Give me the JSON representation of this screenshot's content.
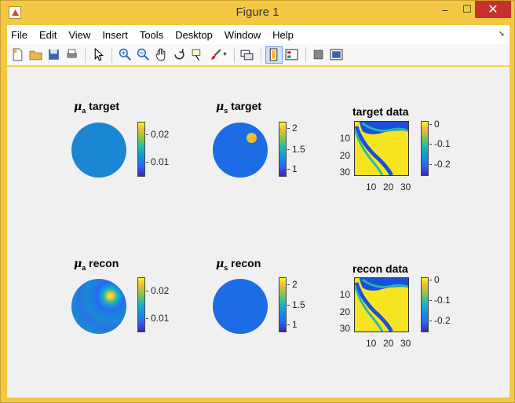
{
  "window": {
    "title": "Figure 1",
    "min": "–",
    "max": "☐",
    "close": "✕"
  },
  "menu": [
    "File",
    "Edit",
    "View",
    "Insert",
    "Tools",
    "Desktop",
    "Window",
    "Help"
  ],
  "toolbar_icons": [
    "new-figure-icon",
    "open-icon",
    "save-icon",
    "print-icon",
    "pointer-icon",
    "zoom-in-icon",
    "zoom-out-icon",
    "pan-icon",
    "rotate-icon",
    "data-cursor-icon",
    "brush-icon",
    "link-icon",
    "colorbar-icon",
    "legend-icon",
    "hide-plot-tools-icon",
    "show-plot-tools-icon"
  ],
  "plots": {
    "mua_target": {
      "mu": "μ",
      "sub": "a",
      "word": "target",
      "ticks": [
        "0.02",
        "0.01"
      ]
    },
    "mus_target": {
      "mu": "μ",
      "sub": "s",
      "word": "target",
      "ticks": [
        "2",
        "1.5",
        "1"
      ]
    },
    "target_data": {
      "title": "target data",
      "cticks": [
        "0",
        "-0.1",
        "-0.2"
      ],
      "yticks": [
        "10",
        "20",
        "30"
      ],
      "xticks": [
        "10",
        "20",
        "30"
      ]
    },
    "mua_recon": {
      "mu": "μ",
      "sub": "a",
      "word": "recon",
      "ticks": [
        "0.02",
        "0.01"
      ]
    },
    "mus_recon": {
      "mu": "μ",
      "sub": "s",
      "word": "recon",
      "ticks": [
        "2",
        "1.5",
        "1"
      ]
    },
    "recon_data": {
      "title": "recon data",
      "cticks": [
        "0",
        "-0.1",
        "-0.2"
      ],
      "yticks": [
        "10",
        "20",
        "30"
      ],
      "xticks": [
        "10",
        "20",
        "30"
      ]
    }
  },
  "colors": {
    "disk_mua": "#1b86d4",
    "disk_mus": "#1c6ce6",
    "blob_yellow": "#f5bf2a",
    "matrix_yellow": "#f7e421"
  }
}
